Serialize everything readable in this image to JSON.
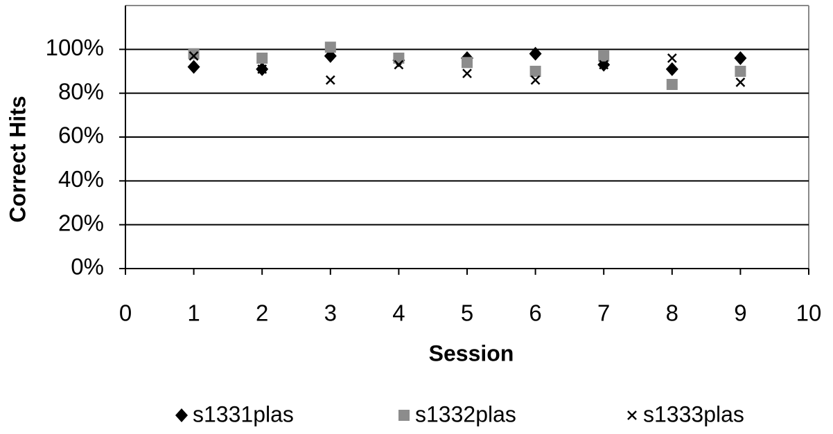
{
  "chart_data": {
    "type": "scatter",
    "x_label": "Session",
    "y_label": "Correct Hits",
    "xlim": [
      0,
      10
    ],
    "xticks": [
      0,
      1,
      2,
      3,
      4,
      5,
      6,
      7,
      8,
      9,
      10
    ],
    "ylim": [
      0,
      120
    ],
    "yticks": [
      {
        "value": 0,
        "label": "0%"
      },
      {
        "value": 20,
        "label": "20%"
      },
      {
        "value": 40,
        "label": "40%"
      },
      {
        "value": 60,
        "label": "60%"
      },
      {
        "value": 80,
        "label": "80%"
      },
      {
        "value": 100,
        "label": "100%"
      }
    ],
    "grid": true,
    "legend": "bottom",
    "series": [
      {
        "name": "s1331plas",
        "color": "#000000",
        "marker": "diamond",
        "x": [
          1,
          2,
          3,
          4,
          5,
          6,
          7,
          8,
          9
        ],
        "values": [
          92,
          91,
          97,
          95,
          96,
          98,
          93,
          91,
          96
        ]
      },
      {
        "name": "s1332plas",
        "color": "#8c8c8c",
        "marker": "square",
        "x": [
          1,
          2,
          3,
          4,
          5,
          6,
          7,
          8,
          9
        ],
        "values": [
          98,
          96,
          101,
          96,
          94,
          90,
          97,
          84,
          90
        ]
      },
      {
        "name": "s1333plas",
        "color": "#000000",
        "marker": "x",
        "x": [
          1,
          2,
          3,
          4,
          5,
          6,
          7,
          8,
          9
        ],
        "values": [
          97,
          91,
          86,
          93,
          89,
          86,
          93,
          96,
          85
        ]
      }
    ]
  }
}
